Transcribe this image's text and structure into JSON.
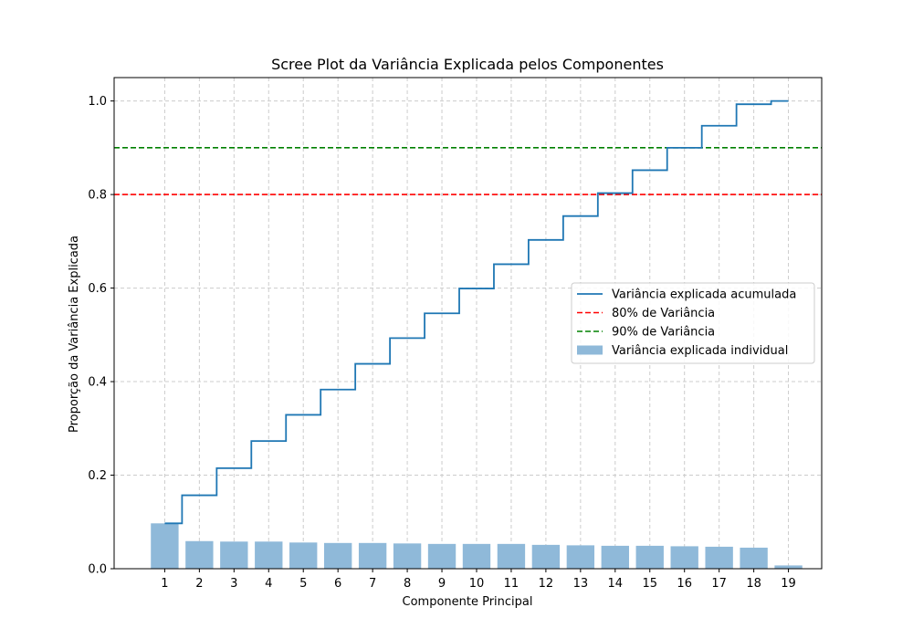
{
  "chart_data": {
    "type": "bar",
    "title": "Scree Plot da Variância Explicada pelos Componentes",
    "xlabel": "Componente Principal",
    "ylabel": "Proporção da Variância Explicada",
    "categories": [
      "1",
      "2",
      "3",
      "4",
      "5",
      "6",
      "7",
      "8",
      "9",
      "10",
      "11",
      "12",
      "13",
      "14",
      "15",
      "16",
      "17",
      "18",
      "19"
    ],
    "ylim": [
      0,
      1.05
    ],
    "yticks": [
      "0.0",
      "0.2",
      "0.4",
      "0.6",
      "0.8",
      "1.0"
    ],
    "grid": true,
    "legend_position": "center-right",
    "series": [
      {
        "name": "Variância explicada individual",
        "type": "bar",
        "color": "#8fb9d9",
        "values": [
          0.097,
          0.059,
          0.058,
          0.058,
          0.056,
          0.055,
          0.055,
          0.054,
          0.053,
          0.053,
          0.053,
          0.051,
          0.05,
          0.049,
          0.049,
          0.048,
          0.047,
          0.045,
          0.007
        ]
      },
      {
        "name": "Variância explicada acumulada",
        "type": "step",
        "color": "#1f77b4",
        "values": [
          0.097,
          0.157,
          0.215,
          0.273,
          0.329,
          0.383,
          0.438,
          0.493,
          0.546,
          0.599,
          0.651,
          0.703,
          0.754,
          0.803,
          0.852,
          0.9,
          0.947,
          0.993,
          1.0
        ]
      }
    ],
    "reference_lines": [
      {
        "name": "80% de Variância",
        "value": 0.8,
        "color": "#ff0000"
      },
      {
        "name": "90% de Variância",
        "value": 0.9,
        "color": "#008000"
      }
    ],
    "legend": [
      "Variância explicada acumulada",
      "80% de Variância",
      "90% de Variância",
      "Variância explicada individual"
    ]
  }
}
